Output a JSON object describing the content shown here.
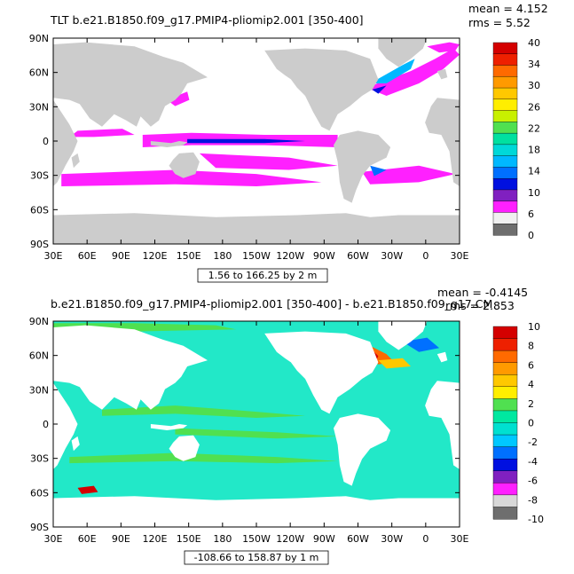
{
  "chart_data": [
    {
      "type": "heatmap",
      "title": "TLT b.e21.B1850.f09_g17.PMIP4-pliomip2.001 [350-400]",
      "stats": [
        "mean = 4.152",
        "rms = 5.52"
      ],
      "range_label": "1.56 to 166.25 by 2 m",
      "ylim": [
        -90,
        90
      ],
      "xlim": [
        30,
        390
      ],
      "y_ticks": [
        "90N",
        "60N",
        "30N",
        "0",
        "30S",
        "60S",
        "90S"
      ],
      "x_ticks": [
        "30E",
        "60E",
        "90E",
        "120E",
        "150E",
        "180",
        "150W",
        "120W",
        "90W",
        "60W",
        "30W",
        "0",
        "30E"
      ],
      "colorbar": {
        "labels": [
          "40",
          "34",
          "30",
          "26",
          "22",
          "18",
          "14",
          "10",
          "6",
          "0"
        ],
        "colors": [
          "#d40000",
          "#ee2000",
          "#ff6a00",
          "#ff9a00",
          "#ffc800",
          "#ffee00",
          "#c8f000",
          "#50e050",
          "#00e0a0",
          "#00d8d8",
          "#00b8ff",
          "#0070ff",
          "#0010e0",
          "#8020c0",
          "#ff20ff",
          "#f0f0f0",
          "#6e6e6e"
        ]
      },
      "land_color": "#cccccc",
      "ocean_base_color": "#ffffff"
    },
    {
      "type": "heatmap",
      "title": "b.e21.B1850.f09_g17.PMIP4-pliomip2.001 [350-400] - b.e21.B1850.f09_g17.CM",
      "stats": [
        "mean = -0.4145",
        "rms = 2.853"
      ],
      "range_label": "-108.66 to 158.87 by 1 m",
      "ylim": [
        -90,
        90
      ],
      "xlim": [
        30,
        390
      ],
      "y_ticks": [
        "90N",
        "60N",
        "30N",
        "0",
        "30S",
        "60S",
        "90S"
      ],
      "x_ticks": [
        "30E",
        "60E",
        "90E",
        "120E",
        "150E",
        "180",
        "150W",
        "120W",
        "90W",
        "60W",
        "30W",
        "0",
        "30E"
      ],
      "colorbar": {
        "labels": [
          "10",
          "8",
          "6",
          "4",
          "2",
          "0",
          "-2",
          "-4",
          "-6",
          "-8",
          "-10"
        ],
        "colors": [
          "#d40000",
          "#ee2000",
          "#ff6a00",
          "#ff9a00",
          "#ffc800",
          "#ffee00",
          "#50e050",
          "#00e8a0",
          "#00e0d0",
          "#00c8ff",
          "#0070ff",
          "#0010e0",
          "#8020c0",
          "#ff20ff",
          "#d8d8d8",
          "#6e6e6e"
        ]
      },
      "land_color": "#ffffff",
      "ocean_base_color": "#22e8c8"
    }
  ]
}
